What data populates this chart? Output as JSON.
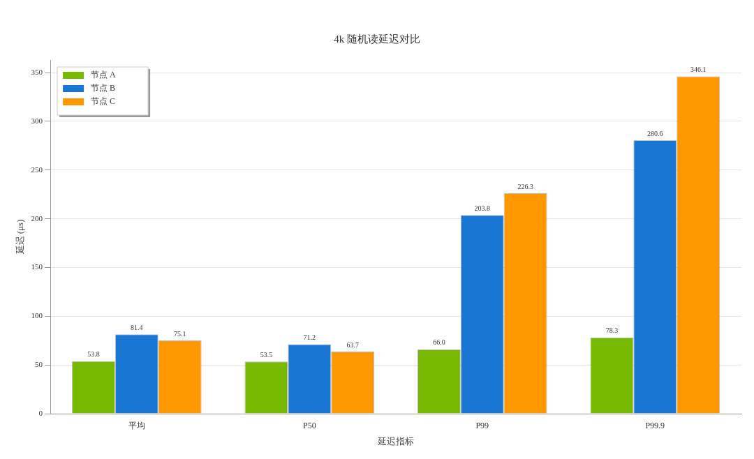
{
  "chart_data": {
    "type": "bar",
    "title": "4k 随机读延迟对比",
    "xlabel": "延迟指标",
    "ylabel": "延迟 (μs)",
    "categories": [
      "平均",
      "P50",
      "P99",
      "P99.9"
    ],
    "series": [
      {
        "name": "节点 A",
        "color": "#76b900",
        "values": [
          53.8,
          53.5,
          66.0,
          78.3
        ],
        "value_labels": [
          "53.8",
          "53.5",
          "66.0",
          "78.3"
        ]
      },
      {
        "name": "节点 B",
        "color": "#1976d2",
        "values": [
          81.4,
          71.2,
          203.8,
          280.6
        ],
        "value_labels": [
          "81.4",
          "71.2",
          "203.8",
          "280.6"
        ]
      },
      {
        "name": "节点 C",
        "color": "#ff9800",
        "values": [
          75.1,
          63.7,
          226.3,
          346.1
        ],
        "value_labels": [
          "75.1",
          "63.7",
          "226.3",
          "346.1"
        ]
      }
    ],
    "ylim": [
      0,
      363
    ],
    "yticks": [
      0,
      50,
      100,
      150,
      200,
      250,
      300,
      350
    ],
    "grid": "y",
    "legend": "top left"
  }
}
